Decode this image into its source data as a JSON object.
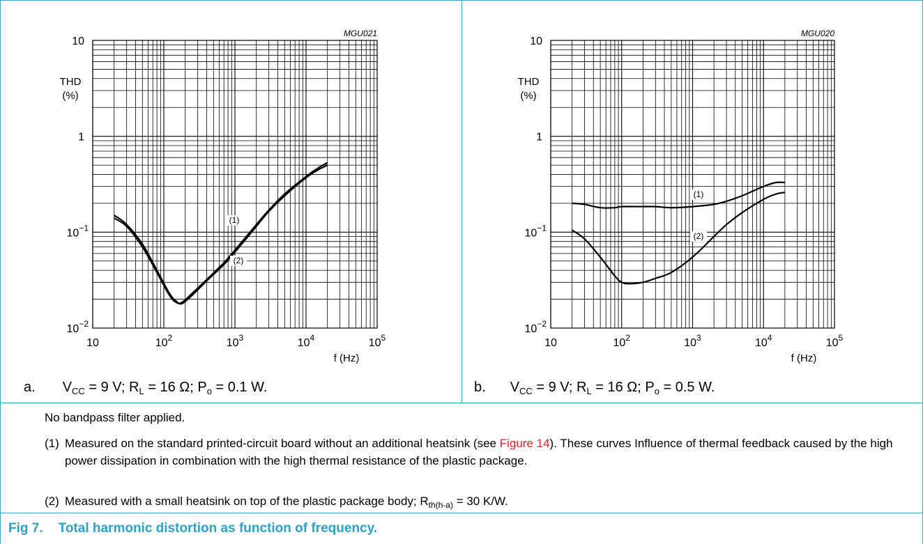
{
  "chart_data": [
    {
      "type": "line",
      "id_label": "MGU021",
      "xlabel": "f (Hz)",
      "ylabel_line1": "THD",
      "ylabel_line2": "(%)",
      "x_scale": "log",
      "y_scale": "log",
      "xlim": [
        10,
        100000
      ],
      "ylim": [
        0.01,
        10
      ],
      "x_ticks": [
        {
          "base": "10",
          "exp": ""
        },
        {
          "base": "10",
          "exp": "2"
        },
        {
          "base": "10",
          "exp": "3"
        },
        {
          "base": "10",
          "exp": "4"
        },
        {
          "base": "10",
          "exp": "5"
        }
      ],
      "y_ticks": [
        {
          "base": "10",
          "exp": "−2"
        },
        {
          "base": "10",
          "exp": "−1"
        },
        {
          "base": "1",
          "exp": ""
        },
        {
          "base": "10",
          "exp": ""
        }
      ],
      "grid": true,
      "series": [
        {
          "name": "(1)",
          "x": [
            20,
            30,
            50,
            80,
            120,
            150,
            180,
            250,
            400,
            700,
            1000,
            2000,
            3000,
            5000,
            10000,
            15000,
            20000
          ],
          "y": [
            0.14,
            0.115,
            0.07,
            0.038,
            0.022,
            0.0185,
            0.0185,
            0.023,
            0.032,
            0.048,
            0.065,
            0.12,
            0.17,
            0.25,
            0.38,
            0.47,
            0.53
          ]
        },
        {
          "name": "(2)",
          "x": [
            20,
            30,
            50,
            80,
            120,
            150,
            180,
            250,
            400,
            700,
            1000,
            2000,
            3000,
            5000,
            10000,
            15000,
            20000
          ],
          "y": [
            0.15,
            0.12,
            0.075,
            0.04,
            0.023,
            0.019,
            0.018,
            0.022,
            0.031,
            0.046,
            0.062,
            0.115,
            0.165,
            0.24,
            0.37,
            0.45,
            0.5
          ]
        }
      ],
      "caption": {
        "prefix": "a.",
        "text": "VCC = 9 V; RL = 16 Ω; Po = 0.1 W."
      }
    },
    {
      "type": "line",
      "id_label": "MGU020",
      "xlabel": "f (Hz)",
      "ylabel_line1": "THD",
      "ylabel_line2": "(%)",
      "x_scale": "log",
      "y_scale": "log",
      "xlim": [
        10,
        100000
      ],
      "ylim": [
        0.01,
        10
      ],
      "x_ticks": [
        {
          "base": "10",
          "exp": ""
        },
        {
          "base": "10",
          "exp": "2"
        },
        {
          "base": "10",
          "exp": "3"
        },
        {
          "base": "10",
          "exp": "4"
        },
        {
          "base": "10",
          "exp": "5"
        }
      ],
      "y_ticks": [
        {
          "base": "10",
          "exp": "−2"
        },
        {
          "base": "10",
          "exp": "−1"
        },
        {
          "base": "1",
          "exp": ""
        },
        {
          "base": "10",
          "exp": ""
        }
      ],
      "grid": true,
      "series": [
        {
          "name": "(1)",
          "x": [
            20,
            30,
            50,
            80,
            100,
            200,
            300,
            500,
            1000,
            2000,
            3000,
            5000,
            10000,
            15000,
            20000
          ],
          "y": [
            0.2,
            0.195,
            0.18,
            0.18,
            0.185,
            0.185,
            0.185,
            0.18,
            0.185,
            0.195,
            0.21,
            0.24,
            0.3,
            0.33,
            0.33
          ]
        },
        {
          "name": "(2)",
          "x": [
            20,
            30,
            50,
            80,
            100,
            130,
            200,
            300,
            500,
            1000,
            2000,
            3000,
            5000,
            10000,
            15000,
            20000
          ],
          "y": [
            0.105,
            0.085,
            0.055,
            0.035,
            0.03,
            0.029,
            0.03,
            0.033,
            0.038,
            0.055,
            0.09,
            0.12,
            0.16,
            0.22,
            0.25,
            0.26
          ]
        }
      ],
      "caption": {
        "prefix": "b.",
        "text": "VCC = 9 V; RL = 16 Ω; Po = 0.5 W."
      }
    }
  ],
  "caption_a": {
    "prefix": "a.",
    "vcc": "V",
    "vcc_sub": "CC",
    "vcc_val": " = 9 V; R",
    "rl_sub": "L",
    "rl_val": " = 16 Ω; P",
    "po_sub": "o",
    "po_val": " = 0.1 W."
  },
  "caption_b": {
    "prefix": "b.",
    "vcc": "V",
    "vcc_sub": "CC",
    "vcc_val": " = 9 V; R",
    "rl_sub": "L",
    "rl_val": " = 16 Ω; P",
    "po_sub": "o",
    "po_val": " = 0.5 W."
  },
  "notes": {
    "title": "No bandpass filter applied.",
    "note1_num": "(1)",
    "note1_pre": "Measured on the standard printed-circuit board without an additional heatsink (see ",
    "note1_link": "Figure 14",
    "note1_post": "). These curves Influence of thermal feedback caused by the high power dissipation in combination with the high thermal resistance of the plastic package.",
    "note2_num": "(2)",
    "note2_pre": "Measured with a small heatsink on top of the plastic package body; R",
    "note2_sub": "th(h-a)",
    "note2_post": " = 30 K/W."
  },
  "figure": {
    "label": "Fig 7.",
    "title": "Total harmonic distortion as function of frequency."
  },
  "colors": {
    "frame": "#3aa9c0",
    "figure_title": "#2da2c5",
    "link": "#e0202a",
    "curve": "#000000",
    "grid": "#000000"
  }
}
